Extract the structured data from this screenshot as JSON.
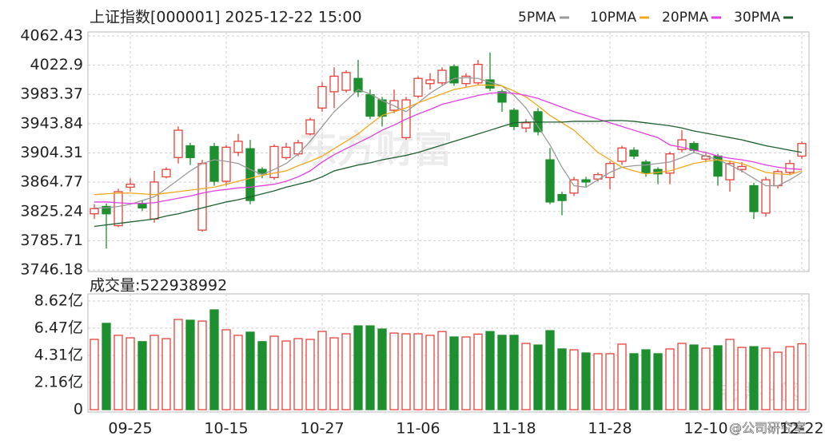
{
  "chart_data": [
    {
      "type": "candlestick",
      "title": "上证指数[000001] 2025-12-22 15:00",
      "categories": [
        null,
        null,
        null,
        "09-25",
        null,
        null,
        null,
        null,
        null,
        null,
        null,
        "10-15",
        null,
        null,
        null,
        null,
        null,
        null,
        null,
        "10-27",
        null,
        null,
        null,
        null,
        null,
        null,
        null,
        "11-06",
        null,
        null,
        null,
        null,
        null,
        null,
        null,
        "11-18",
        null,
        null,
        null,
        null,
        null,
        null,
        null,
        "11-28",
        null,
        null,
        null,
        null,
        null,
        null,
        null,
        "12-10",
        null,
        null,
        null,
        null,
        null,
        null,
        null,
        "12-22"
      ],
      "open": [
        3822,
        3832,
        3806,
        3858,
        3836,
        3815,
        3872,
        3898,
        3914,
        3800,
        3913,
        3866,
        3905,
        3910,
        3882,
        3871,
        3898,
        3903,
        3930,
        3965,
        3987,
        3989,
        4005,
        3983,
        3976,
        3962,
        3925,
        3981,
        3998,
        3999,
        4021,
        3998,
        3999,
        4003,
        3987,
        3962,
        3938,
        3960,
        3895,
        3848,
        3850,
        3868,
        3869,
        3871,
        3893,
        3908,
        3892,
        3882,
        3877,
        3909,
        3917,
        3896,
        3900,
        3868,
        3882,
        3860,
        3823,
        3860,
        3878,
        3900
      ],
      "high": [
        3835,
        3836,
        3856,
        3870,
        3840,
        3880,
        3885,
        3940,
        3918,
        3895,
        3918,
        3915,
        3930,
        3922,
        3885,
        3916,
        3918,
        3922,
        3952,
        4000,
        4020,
        4016,
        4030,
        3990,
        3980,
        3990,
        3980,
        4008,
        4012,
        4020,
        4024,
        4012,
        4030,
        4040,
        3990,
        3965,
        3950,
        3965,
        3911,
        3852,
        3872,
        3872,
        3878,
        3893,
        3914,
        3912,
        3895,
        3885,
        3906,
        3935,
        3920,
        3904,
        3903,
        3894,
        3892,
        3864,
        3872,
        3882,
        3895,
        3920
      ],
      "low": [
        3815,
        3775,
        3804,
        3852,
        3826,
        3810,
        3870,
        3890,
        3888,
        3798,
        3860,
        3860,
        3900,
        3835,
        3870,
        3868,
        3895,
        3900,
        3928,
        3960,
        3965,
        3986,
        3980,
        3950,
        3940,
        3958,
        3922,
        3978,
        3990,
        3996,
        3995,
        3994,
        3996,
        3988,
        3960,
        3935,
        3932,
        3928,
        3835,
        3820,
        3846,
        3858,
        3866,
        3855,
        3888,
        3896,
        3872,
        3862,
        3862,
        3905,
        3904,
        3892,
        3860,
        3852,
        3878,
        3815,
        3818,
        3856,
        3874,
        3896
      ],
      "close": [
        3829,
        3822,
        3852,
        3862,
        3830,
        3865,
        3882,
        3935,
        3898,
        3890,
        3866,
        3912,
        3920,
        3840,
        3876,
        3913,
        3912,
        3918,
        3949,
        3994,
        4008,
        4013,
        3987,
        3954,
        3954,
        3975,
        3976,
        4005,
        4003,
        4016,
        3999,
        4008,
        4024,
        3992,
        3973,
        3940,
        3945,
        3933,
        3838,
        3840,
        3868,
        3865,
        3875,
        3890,
        3911,
        3900,
        3877,
        3876,
        3903,
        3922,
        3908,
        3900,
        3873,
        3890,
        3886,
        3825,
        3868,
        3879,
        3890,
        3917
      ],
      "up_color": "#e8413a",
      "down_color": "#1e8f2f",
      "series": [
        {
          "name": "5PMA",
          "color": "#9a9a9a",
          "values": [
            3830,
            3830,
            3832,
            3835,
            3840,
            3845,
            3856,
            3868,
            3880,
            3890,
            3895,
            3893,
            3890,
            3882,
            3875,
            3882,
            3890,
            3903,
            3920,
            3940,
            3960,
            3975,
            3990,
            3984,
            3975,
            3968,
            3960,
            3972,
            3985,
            3995,
            4005,
            4006,
            4005,
            4000,
            3995,
            3982,
            3965,
            3940,
            3915,
            3885,
            3860,
            3858,
            3868,
            3878,
            3885,
            3887,
            3888,
            3890,
            3892,
            3898,
            3905,
            3900,
            3895,
            3888,
            3880,
            3870,
            3860,
            3860,
            3868,
            3878
          ]
        },
        {
          "name": "10PMA",
          "color": "#f0a81c",
          "values": [
            3848,
            3849,
            3850,
            3850,
            3849,
            3848,
            3850,
            3852,
            3854,
            3856,
            3858,
            3862,
            3866,
            3870,
            3874,
            3877,
            3880,
            3887,
            3893,
            3900,
            3910,
            3920,
            3930,
            3943,
            3955,
            3960,
            3965,
            3972,
            3978,
            3984,
            3990,
            3993,
            3996,
            3996,
            3995,
            3988,
            3980,
            3968,
            3955,
            3945,
            3935,
            3920,
            3905,
            3895,
            3885,
            3880,
            3876,
            3878,
            3880,
            3885,
            3890,
            3893,
            3895,
            3893,
            3890,
            3884,
            3878,
            3876,
            3875,
            3880
          ]
        },
        {
          "name": "20PMA",
          "color": "#e23ee0",
          "values": [
            3838,
            3838,
            3837,
            3836,
            3836,
            3837,
            3840,
            3843,
            3846,
            3850,
            3853,
            3855,
            3857,
            3858,
            3860,
            3862,
            3866,
            3872,
            3880,
            3892,
            3902,
            3910,
            3918,
            3926,
            3935,
            3942,
            3950,
            3957,
            3963,
            3970,
            3974,
            3978,
            3982,
            3985,
            3986,
            3985,
            3982,
            3978,
            3972,
            3966,
            3960,
            3955,
            3950,
            3945,
            3940,
            3935,
            3930,
            3925,
            3915,
            3912,
            3908,
            3905,
            3900,
            3897,
            3895,
            3892,
            3888,
            3885,
            3883,
            3882
          ]
        },
        {
          "name": "30PMA",
          "color": "#1f5f2f",
          "values": [
            3805,
            3807,
            3809,
            3811,
            3813,
            3815,
            3819,
            3822,
            3826,
            3830,
            3834,
            3838,
            3841,
            3845,
            3849,
            3853,
            3858,
            3862,
            3866,
            3872,
            3880,
            3884,
            3888,
            3891,
            3895,
            3898,
            3901,
            3905,
            3910,
            3915,
            3920,
            3925,
            3930,
            3935,
            3940,
            3945,
            3946,
            3946,
            3946,
            3946,
            3947,
            3947,
            3947,
            3948,
            3948,
            3947,
            3945,
            3943,
            3941,
            3938,
            3934,
            3931,
            3928,
            3925,
            3922,
            3918,
            3914,
            3911,
            3908,
            3905
          ]
        }
      ],
      "ylim": [
        3746.18,
        4062.43
      ],
      "yticks": [
        4062.43,
        4022.9,
        3983.37,
        3943.84,
        3904.31,
        3864.77,
        3825.24,
        3785.71,
        3746.18
      ],
      "grid": true
    },
    {
      "type": "bar",
      "title": "成交量:522938992",
      "values": [
        5.58,
        6.85,
        5.9,
        5.7,
        5.4,
        5.9,
        5.64,
        7.16,
        7.1,
        7.03,
        7.92,
        6.34,
        5.9,
        6.15,
        5.4,
        5.83,
        5.45,
        5.64,
        5.58,
        6.21,
        5.7,
        6.02,
        6.65,
        6.65,
        6.4,
        6.08,
        6.02,
        6.02,
        5.9,
        6.2,
        5.77,
        5.77,
        6.0,
        6.2,
        5.9,
        5.9,
        5.26,
        5.13,
        6.27,
        4.82,
        4.75,
        4.5,
        4.44,
        4.44,
        5.2,
        4.44,
        4.75,
        4.44,
        4.82,
        5.26,
        5.13,
        4.88,
        5.07,
        5.58,
        4.94,
        5.0,
        4.88,
        4.56,
        5.0,
        5.23
      ],
      "ylim": [
        0,
        8.62
      ],
      "yticks": [
        {
          "value": 8.62,
          "label": "8.62亿"
        },
        {
          "value": 6.47,
          "label": "6.47亿"
        },
        {
          "value": 4.31,
          "label": "4.31亿"
        },
        {
          "value": 2.16,
          "label": "2.16亿"
        },
        0
      ],
      "grid": true
    }
  ],
  "watermarks": [
    "东方财富",
    "老虎社区",
    "@公司研究室"
  ]
}
